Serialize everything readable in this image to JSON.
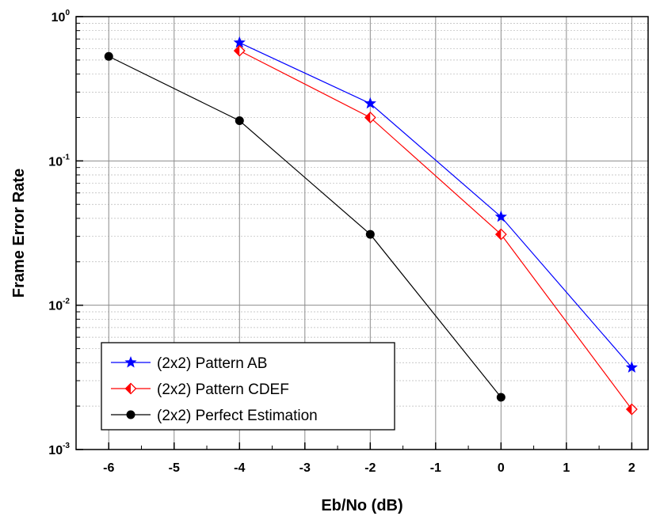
{
  "chart_data": {
    "type": "line",
    "xlabel": "Eb/No (dB)",
    "ylabel": "Frame Error Rate",
    "xlim": [
      -6.5,
      2.25
    ],
    "ylim": [
      0.001,
      1
    ],
    "y_scale": "log",
    "x_ticks": [
      -6,
      -5,
      -4,
      -3,
      -2,
      -1,
      0,
      1,
      2
    ],
    "x_tick_labels": [
      "-6",
      "-5",
      "-4",
      "-3",
      "-2",
      "-1",
      "0",
      "1",
      "2"
    ],
    "y_ticks": [
      0.001,
      0.01,
      0.1,
      1
    ],
    "y_tick_labels": [
      {
        "base": "10",
        "exp": "-3"
      },
      {
        "base": "10",
        "exp": "-2"
      },
      {
        "base": "10",
        "exp": "-1"
      },
      {
        "base": "10",
        "exp": "0"
      }
    ],
    "grid": true,
    "legend_position": "bottom-left",
    "series": [
      {
        "name": "(2x2) Pattern AB",
        "color": "#0000ff",
        "marker": "star",
        "x": [
          -4,
          -2,
          0,
          2
        ],
        "y": [
          0.66,
          0.25,
          0.041,
          0.0037
        ]
      },
      {
        "name": "(2x2) Pattern CDEF",
        "color": "#ff0000",
        "marker": "half-diamond",
        "x": [
          -4,
          -2,
          0,
          2
        ],
        "y": [
          0.58,
          0.2,
          0.031,
          0.0019
        ]
      },
      {
        "name": "(2x2) Perfect Estimation",
        "color": "#000000",
        "marker": "circle",
        "x": [
          -6,
          -4,
          -2,
          0
        ],
        "y": [
          0.53,
          0.19,
          0.031,
          0.0023
        ]
      }
    ]
  }
}
